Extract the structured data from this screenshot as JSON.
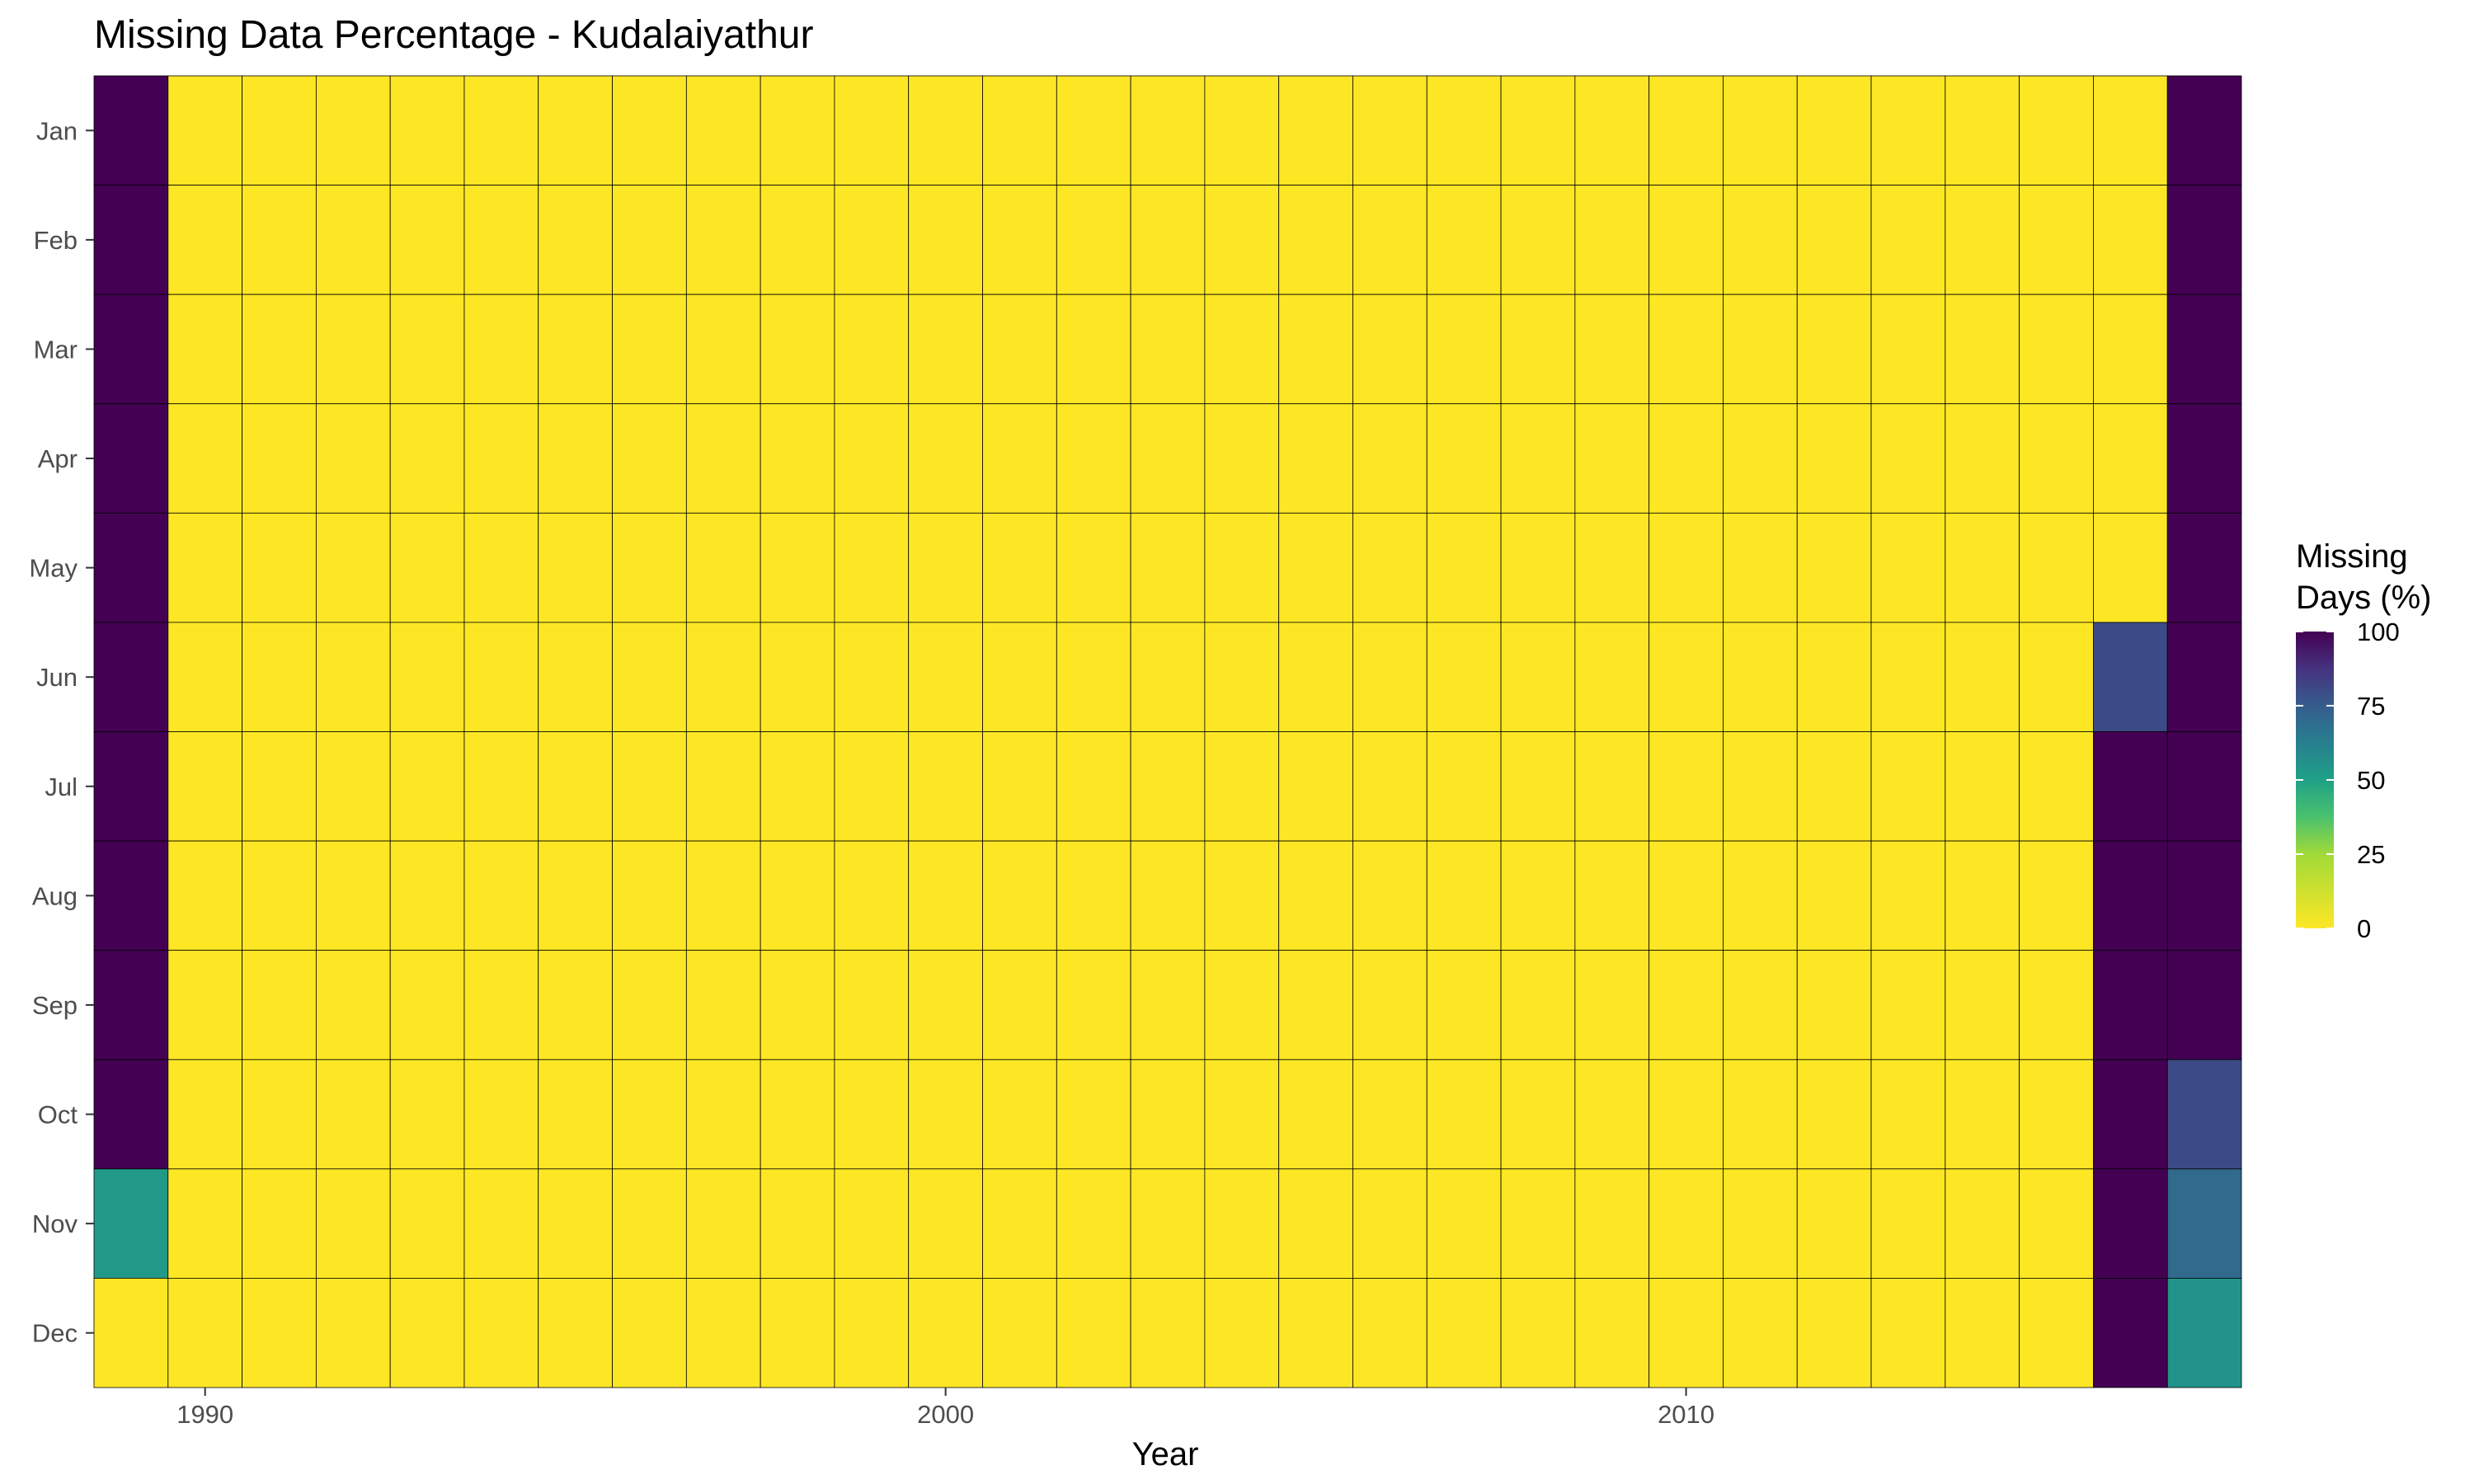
{
  "chart_data": {
    "type": "heatmap",
    "title": "Missing Data Percentage - Kudalaiyathur",
    "xlabel": "Year",
    "ylabel": "",
    "years": [
      1989,
      1990,
      1991,
      1992,
      1993,
      1994,
      1995,
      1996,
      1997,
      1998,
      1999,
      2000,
      2001,
      2002,
      2003,
      2004,
      2005,
      2006,
      2007,
      2008,
      2009,
      2010,
      2011,
      2012,
      2013,
      2014,
      2015,
      2016,
      2017
    ],
    "months": [
      "Jan",
      "Feb",
      "Mar",
      "Apr",
      "May",
      "Jun",
      "Jul",
      "Aug",
      "Sep",
      "Oct",
      "Nov",
      "Dec"
    ],
    "x_ticks": [
      1990,
      2000,
      2010
    ],
    "legend": {
      "title_line1": "Missing",
      "title_line2": "Days (%)",
      "ticks": [
        100,
        75,
        50,
        25,
        0
      ],
      "position": "right",
      "colormap": "viridis (reversed: 0 = yellow, 100 = dark purple)",
      "range": [
        0,
        100
      ]
    },
    "grid": false,
    "default_value": 0,
    "nonzero_cells": [
      {
        "year": 1989,
        "month": "Jan",
        "value": 100
      },
      {
        "year": 1989,
        "month": "Feb",
        "value": 100
      },
      {
        "year": 1989,
        "month": "Mar",
        "value": 100
      },
      {
        "year": 1989,
        "month": "Apr",
        "value": 100
      },
      {
        "year": 1989,
        "month": "May",
        "value": 100
      },
      {
        "year": 1989,
        "month": "Jun",
        "value": 100
      },
      {
        "year": 1989,
        "month": "Jul",
        "value": 100
      },
      {
        "year": 1989,
        "month": "Aug",
        "value": 100
      },
      {
        "year": 1989,
        "month": "Sep",
        "value": 100
      },
      {
        "year": 1989,
        "month": "Oct",
        "value": 100
      },
      {
        "year": 1989,
        "month": "Nov",
        "value": 53
      },
      {
        "year": 2016,
        "month": "Jun",
        "value": 80
      },
      {
        "year": 2016,
        "month": "Jul",
        "value": 100
      },
      {
        "year": 2016,
        "month": "Aug",
        "value": 100
      },
      {
        "year": 2016,
        "month": "Sep",
        "value": 100
      },
      {
        "year": 2016,
        "month": "Oct",
        "value": 100
      },
      {
        "year": 2016,
        "month": "Nov",
        "value": 100
      },
      {
        "year": 2016,
        "month": "Dec",
        "value": 100
      },
      {
        "year": 2017,
        "month": "Jan",
        "value": 100
      },
      {
        "year": 2017,
        "month": "Feb",
        "value": 100
      },
      {
        "year": 2017,
        "month": "Mar",
        "value": 100
      },
      {
        "year": 2017,
        "month": "Apr",
        "value": 100
      },
      {
        "year": 2017,
        "month": "May",
        "value": 100
      },
      {
        "year": 2017,
        "month": "Jun",
        "value": 100
      },
      {
        "year": 2017,
        "month": "Jul",
        "value": 100
      },
      {
        "year": 2017,
        "month": "Aug",
        "value": 100
      },
      {
        "year": 2017,
        "month": "Sep",
        "value": 100
      },
      {
        "year": 2017,
        "month": "Oct",
        "value": 80
      },
      {
        "year": 2017,
        "month": "Nov",
        "value": 70
      },
      {
        "year": 2017,
        "month": "Dec",
        "value": 55
      }
    ]
  }
}
